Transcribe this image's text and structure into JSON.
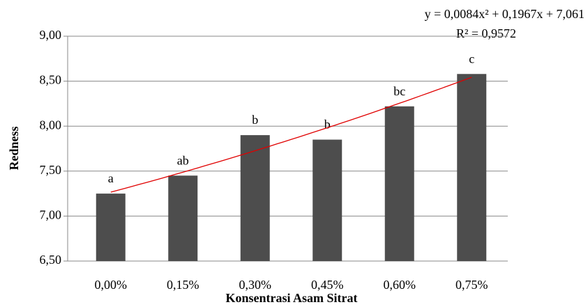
{
  "chart_data": {
    "type": "bar",
    "x_label": "Konsentrasi Asam Sitrat",
    "y_label": "Redness",
    "categories": [
      "0,00%",
      "0,15%",
      "0,30%",
      "0,45%",
      "0,60%",
      "0,75%"
    ],
    "values": [
      7.25,
      7.45,
      7.9,
      7.85,
      8.22,
      8.58
    ],
    "annotations": [
      "a",
      "ab",
      "b",
      "b",
      "bc",
      "c"
    ],
    "color": "#4d4d4d",
    "ylim": [
      6.5,
      9.0
    ],
    "yticks": [
      {
        "value": 6.5,
        "label": "6,50"
      },
      {
        "value": 7.0,
        "label": "7,00"
      },
      {
        "value": 7.5,
        "label": "7,50"
      },
      {
        "value": 8.0,
        "label": "8,00"
      },
      {
        "value": 8.5,
        "label": "8,50"
      },
      {
        "value": 9.0,
        "label": "9,00"
      }
    ],
    "grid": true,
    "trendline": {
      "equation": "y = 0,0084x² + 0,1967x + 7,061",
      "r_squared": "R² = 0,9572",
      "coefficients": [
        0.0084,
        0.1967,
        7.061
      ],
      "color": "#e00000"
    }
  }
}
